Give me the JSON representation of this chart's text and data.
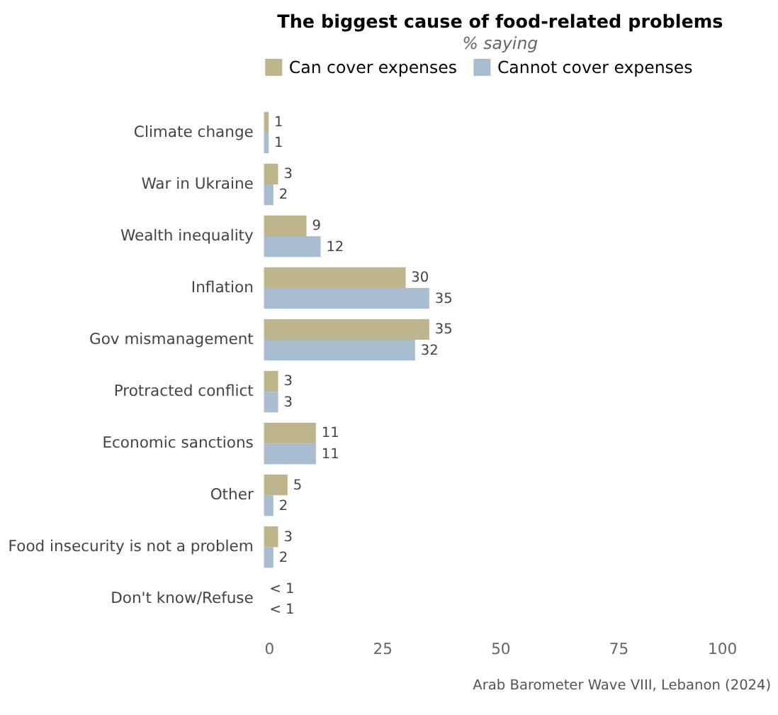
{
  "chart_data": {
    "type": "bar",
    "orientation": "horizontal",
    "title": "The biggest cause of food-related problems",
    "subtitle": "% saying",
    "categories": [
      "Climate change",
      "War in Ukraine",
      "Wealth inequality",
      "Inflation",
      "Gov mismanagement",
      "Protracted conflict",
      "Economic sanctions",
      "Other",
      "Food insecurity is not a problem",
      "Don't know/Refuse"
    ],
    "series": [
      {
        "name": "Can cover expenses",
        "color": "#bdb68c",
        "values": [
          1,
          3,
          9,
          30,
          35,
          3,
          11,
          5,
          3,
          0
        ],
        "value_labels": [
          "1",
          "3",
          "9",
          "30",
          "35",
          "3",
          "11",
          "5",
          "3",
          "< 1"
        ]
      },
      {
        "name": "Cannot cover expenses",
        "color": "#a9bdd0",
        "values": [
          1,
          2,
          12,
          35,
          32,
          3,
          11,
          2,
          2,
          0
        ],
        "value_labels": [
          "1",
          "2",
          "12",
          "35",
          "32",
          "3",
          "11",
          "2",
          "2",
          "< 1"
        ]
      }
    ],
    "xlim": [
      0,
      100
    ],
    "xticks": [
      0,
      25,
      50,
      75,
      100
    ],
    "grid": false,
    "legend": "top",
    "annotations": [
      "Arab Barometer Wave VIII, Lebanon (2024)"
    ]
  }
}
